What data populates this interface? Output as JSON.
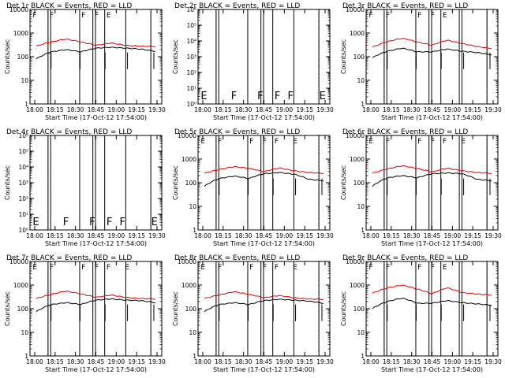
{
  "colors": {
    "events": "#000000",
    "lld": "#e00000",
    "background": "#ffffff"
  },
  "chart_data": [
    {
      "type": "line",
      "title": "Det 1r  BLACK = Events, RED = LLD",
      "xlabel": "Start Time (17-Oct-12 17:54:00)",
      "ylabel": "Counts/sec",
      "x_ticks": [
        "18:00",
        "18:15",
        "18:30",
        "18:45",
        "19:00",
        "19:15",
        "19:30"
      ],
      "y_ticks": [
        "1",
        "10",
        "100",
        "1000",
        "10000"
      ],
      "ylim": [
        1,
        10000
      ],
      "flags": [
        "F",
        "F",
        "F",
        "F",
        "E"
      ],
      "red_base": [
        280,
        420,
        560,
        420,
        300,
        380,
        300,
        280,
        270
      ],
      "black_base": [
        80,
        160,
        200,
        160,
        230,
        250,
        230,
        210,
        170
      ],
      "grid": false
    },
    {
      "type": "line",
      "title": "Det 2r  BLACK = Events, RED = LLD",
      "xlabel": "Start Time (17-Oct-12 17:54:00)",
      "ylabel": "Counts/sec",
      "x_ticks": [
        "18:00",
        "18:15",
        "18:30",
        "18:45",
        "19:00",
        "19:15",
        "19:30"
      ],
      "y_ticks": [
        "10⁰",
        "10¹",
        "10²",
        "10³",
        "10⁴",
        "10⁵",
        "10⁶"
      ],
      "ylim": [
        1,
        1000000
      ],
      "flags": [
        "E",
        "F",
        "F",
        "F",
        "F",
        "E"
      ],
      "red_base": [],
      "black_base": [],
      "grid": false
    },
    {
      "type": "line",
      "title": "Det 3r  BLACK = Events, RED = LLD",
      "xlabel": "Start Time (17-Oct-12 17:54:00)",
      "ylabel": "Counts/sec",
      "x_ticks": [
        "18:00",
        "18:15",
        "18:30",
        "18:45",
        "19:00",
        "19:15",
        "19:30"
      ],
      "y_ticks": [
        "1",
        "10",
        "100",
        "1000",
        "10000"
      ],
      "ylim": [
        1,
        10000
      ],
      "flags": [
        "F",
        "F",
        "F",
        "F",
        "E"
      ],
      "red_base": [
        250,
        430,
        600,
        420,
        300,
        500,
        360,
        270,
        220
      ],
      "black_base": [
        90,
        170,
        230,
        160,
        160,
        210,
        170,
        150,
        120
      ],
      "grid": false
    },
    {
      "type": "line",
      "title": "Det 4r  BLACK = Events, RED = LLD",
      "xlabel": "Start Time (17-Oct-12 17:54:00)",
      "ylabel": "Counts/sec",
      "x_ticks": [
        "18:00",
        "18:15",
        "18:30",
        "18:45",
        "19:00",
        "19:15",
        "19:30"
      ],
      "y_ticks": [
        "10⁰",
        "10¹",
        "10²",
        "10³",
        "10⁴",
        "10⁵",
        "10⁶"
      ],
      "ylim": [
        1,
        1000000
      ],
      "flags": [
        "E",
        "F",
        "F",
        "F",
        "F",
        "E"
      ],
      "red_base": [],
      "black_base": [],
      "grid": false
    },
    {
      "type": "line",
      "title": "Det 5r  BLACK = Events, RED = LLD",
      "xlabel": "Start Time (17-Oct-12 17:54:00)",
      "ylabel": "Counts/sec",
      "x_ticks": [
        "18:00",
        "18:15",
        "18:30",
        "18:45",
        "19:00",
        "19:15",
        "19:30"
      ],
      "y_ticks": [
        "1",
        "10",
        "100",
        "1000",
        "10000"
      ],
      "ylim": [
        1,
        10000
      ],
      "flags": [
        "E",
        "F",
        "F",
        "F",
        "F",
        "E"
      ],
      "red_base": [
        250,
        360,
        480,
        400,
        290,
        420,
        320,
        270,
        250
      ],
      "black_base": [
        70,
        150,
        190,
        150,
        240,
        270,
        230,
        140,
        120
      ],
      "grid": false
    },
    {
      "type": "line",
      "title": "Det 6r  BLACK = Events, RED = LLD",
      "xlabel": "Start Time (17-Oct-12 17:54:00)",
      "ylabel": "Counts/sec",
      "x_ticks": [
        "18:00",
        "18:15",
        "18:30",
        "18:45",
        "19:00",
        "19:15",
        "19:30"
      ],
      "y_ticks": [
        "1",
        "10",
        "100",
        "1000",
        "10000"
      ],
      "ylim": [
        1,
        10000
      ],
      "flags": [
        "E",
        "F",
        "F",
        "F",
        "F",
        "E"
      ],
      "red_base": [
        250,
        380,
        520,
        400,
        280,
        410,
        320,
        270,
        250
      ],
      "black_base": [
        70,
        160,
        200,
        160,
        240,
        260,
        240,
        140,
        120
      ],
      "grid": false
    },
    {
      "type": "line",
      "title": "Det 7r  BLACK = Events, RED = LLD",
      "xlabel": "Start Time (17-Oct-12 17:54:00)",
      "ylabel": "Counts/sec",
      "x_ticks": [
        "18:00",
        "18:15",
        "18:30",
        "18:45",
        "19:00",
        "19:15",
        "19:30"
      ],
      "y_ticks": [
        "1",
        "10",
        "100",
        "1000",
        "10000"
      ],
      "ylim": [
        1,
        10000
      ],
      "flags": [
        "E",
        "F",
        "F",
        "F",
        "F",
        "E"
      ],
      "red_base": [
        270,
        400,
        560,
        420,
        300,
        380,
        300,
        270,
        260
      ],
      "black_base": [
        75,
        150,
        180,
        150,
        230,
        260,
        230,
        220,
        180
      ],
      "grid": false
    },
    {
      "type": "line",
      "title": "Det 8r  BLACK = Events, RED = LLD",
      "xlabel": "Start Time (17-Oct-12 17:54:00)",
      "ylabel": "Counts/sec",
      "x_ticks": [
        "18:00",
        "18:15",
        "18:30",
        "18:45",
        "19:00",
        "19:15",
        "19:30"
      ],
      "y_ticks": [
        "1",
        "10",
        "100",
        "1000",
        "10000"
      ],
      "ylim": [
        1,
        10000
      ],
      "flags": [
        "E",
        "F",
        "F",
        "F",
        "F",
        "E"
      ],
      "red_base": [
        270,
        380,
        520,
        400,
        290,
        360,
        290,
        260,
        250
      ],
      "black_base": [
        75,
        150,
        180,
        150,
        220,
        250,
        230,
        210,
        170
      ],
      "grid": false
    },
    {
      "type": "line",
      "title": "Det 9r  BLACK = Events, RED = LLD",
      "xlabel": "Start Time (17-Oct-12 17:54:00)",
      "ylabel": "Counts/sec",
      "x_ticks": [
        "18:00",
        "18:15",
        "18:30",
        "18:45",
        "19:00",
        "19:15",
        "19:30"
      ],
      "y_ticks": [
        "1",
        "10",
        "100",
        "1000",
        "10000"
      ],
      "ylim": [
        1,
        10000
      ],
      "flags": [
        "F",
        "F",
        "F",
        "F",
        "E"
      ],
      "red_base": [
        450,
        750,
        1000,
        680,
        420,
        760,
        480,
        420,
        380
      ],
      "black_base": [
        100,
        200,
        280,
        170,
        170,
        220,
        180,
        160,
        140
      ],
      "grid": false
    }
  ]
}
